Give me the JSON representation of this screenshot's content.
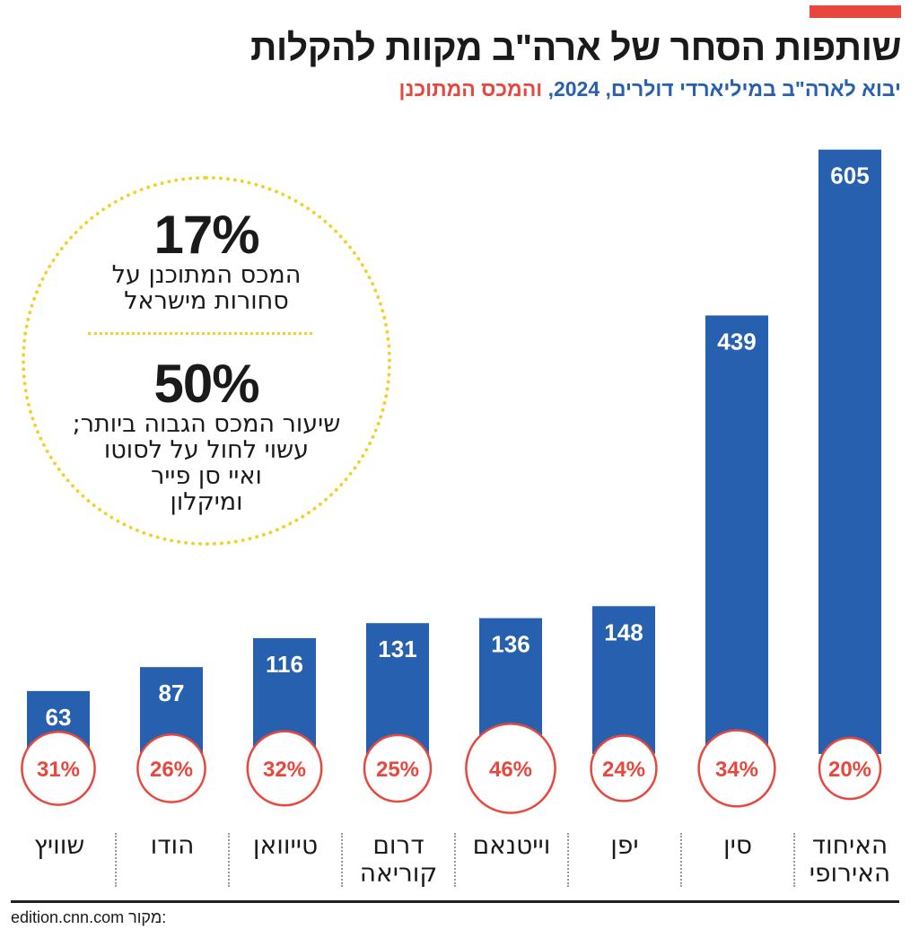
{
  "title": "שותפות הסחר של ארה\"ב מקוות להקלות",
  "subtitle": {
    "blue_part": "יבוא לארה\"ב במיליארדי דולרים, 2024,",
    "red_part": "והמכס המתוכנן"
  },
  "colors": {
    "bar": "#2860b0",
    "tariff": "#e8473e",
    "accent": "#e8473e",
    "ring": "#f2d12d",
    "text": "#1a1a1a"
  },
  "callout": {
    "israel_value": "17%",
    "israel_label_line1": "המכס המתוכנן על",
    "israel_label_line2": "סחורות מישראל",
    "max_value": "50%",
    "max_label_line1": "שיעור המכס הגבוה ביותר;",
    "max_label_line2": "עשוי לחול על לסוטו",
    "max_label_line3": "ואיי סן פייר",
    "max_label_line4": "ומיקלון"
  },
  "chart_data": {
    "type": "bar",
    "title": "שותפות הסחר של ארה\"ב מקוות להקלות",
    "ylabel": "יבוא לארה\"ב במיליארדי דולרים, 2024",
    "ylim": [
      0,
      620
    ],
    "categories": [
      {
        "line1": "האיחוד",
        "line2": "האירופי"
      },
      {
        "line1": "סין",
        "line2": ""
      },
      {
        "line1": "יפן",
        "line2": ""
      },
      {
        "line1": "וייטנאם",
        "line2": ""
      },
      {
        "line1": "דרום",
        "line2": "קוריאה"
      },
      {
        "line1": "טייוואן",
        "line2": ""
      },
      {
        "line1": "הודו",
        "line2": ""
      },
      {
        "line1": "שוויץ",
        "line2": ""
      }
    ],
    "series": [
      {
        "name": "יבוא לארה\"ב (מיליארדי דולרים)",
        "values": [
          605,
          439,
          148,
          136,
          131,
          116,
          87,
          63
        ]
      },
      {
        "name": "המכס המתוכנן (%)",
        "values": [
          20,
          34,
          24,
          46,
          25,
          32,
          26,
          31
        ]
      }
    ],
    "tariff_labels": [
      "20%",
      "34%",
      "24%",
      "46%",
      "25%",
      "32%",
      "26%",
      "31%"
    ]
  },
  "source": {
    "label": "מקור:",
    "value": "edition.cnn.com"
  }
}
